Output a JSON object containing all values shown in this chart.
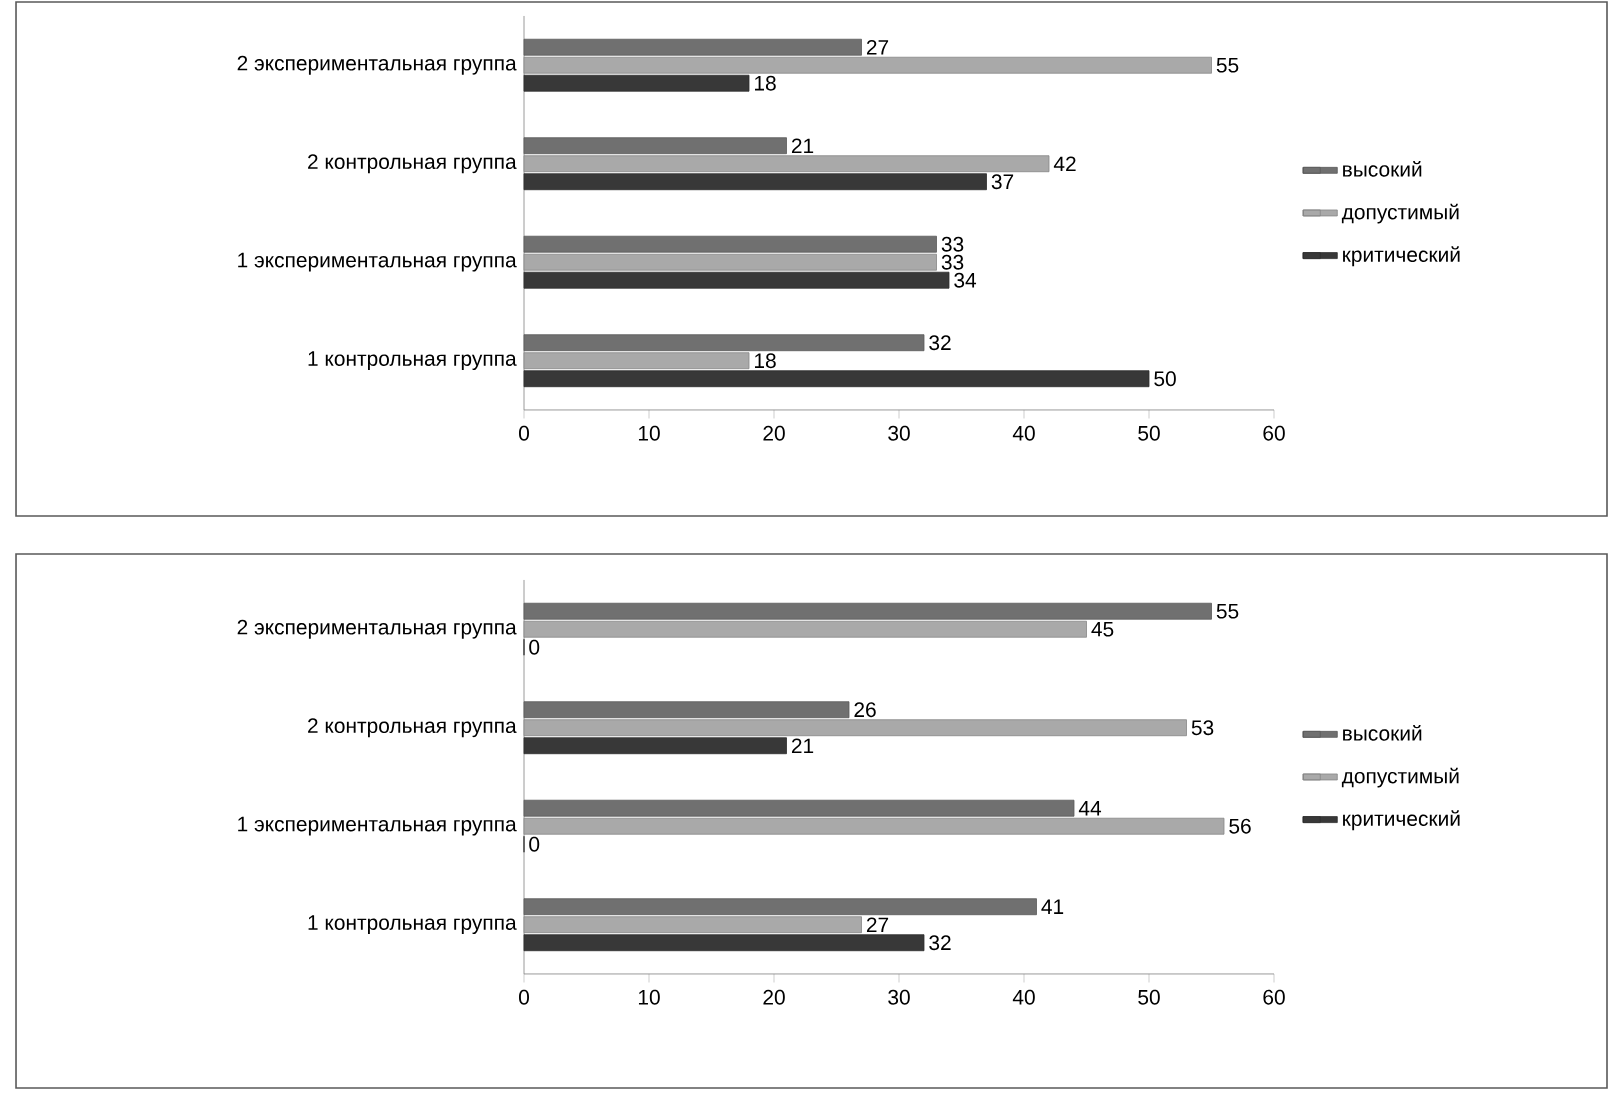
{
  "chart_data": [
    {
      "type": "bar",
      "orientation": "horizontal",
      "categories": [
        "2 экспериментальная группа",
        "2 контрольная группа",
        "1 экспериментальная группа",
        "1 контрольная группа"
      ],
      "series": [
        {
          "name": "высокий",
          "color": "#707070",
          "values": [
            27,
            21,
            33,
            32
          ]
        },
        {
          "name": "допустимый",
          "color": "#a9a9a9",
          "values": [
            55,
            42,
            33,
            18
          ]
        },
        {
          "name": "критический",
          "color": "#383838",
          "values": [
            18,
            37,
            34,
            50
          ]
        }
      ],
      "xlim": [
        0,
        60
      ],
      "xticks": [
        0,
        10,
        20,
        30,
        40,
        50,
        60
      ],
      "data_labels": true,
      "legend": "right"
    },
    {
      "type": "bar",
      "orientation": "horizontal",
      "categories": [
        "2 экспериментальная группа",
        "2 контрольная группа",
        "1 экспериментальная группа",
        "1 контрольная группа"
      ],
      "series": [
        {
          "name": "высокий",
          "color": "#707070",
          "values": [
            55,
            26,
            44,
            41
          ]
        },
        {
          "name": "допустимый",
          "color": "#a9a9a9",
          "values": [
            45,
            53,
            56,
            27
          ]
        },
        {
          "name": "критический",
          "color": "#383838",
          "values": [
            0,
            21,
            0,
            32
          ]
        }
      ],
      "xlim": [
        0,
        60
      ],
      "xticks": [
        0,
        10,
        20,
        30,
        40,
        50,
        60
      ],
      "data_labels": true,
      "legend": "right"
    }
  ]
}
